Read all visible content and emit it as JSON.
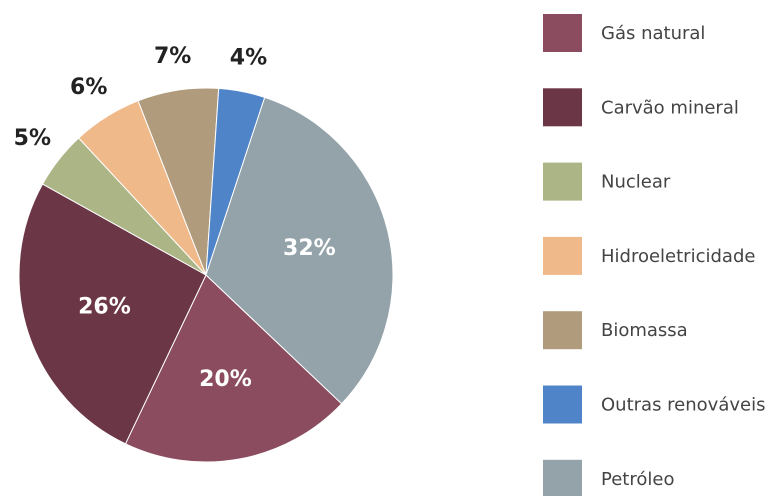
{
  "chart_data": {
    "type": "pie",
    "categories": [
      "Gás natural",
      "Carvão mineral",
      "Nuclear",
      "Hidroeletricidade",
      "Biomassa",
      "Outras renováveis",
      "Petróleo"
    ],
    "values": [
      20,
      26,
      5,
      6,
      7,
      4,
      32
    ],
    "value_labels": [
      "20%",
      "26%",
      "5%",
      "6%",
      "7%",
      "4%",
      "32%"
    ],
    "colors": [
      "#8a4c5e",
      "#6b3645",
      "#abb585",
      "#f0b98a",
      "#b09c7d",
      "#5084c8",
      "#94a3aa"
    ],
    "legend": "right"
  }
}
